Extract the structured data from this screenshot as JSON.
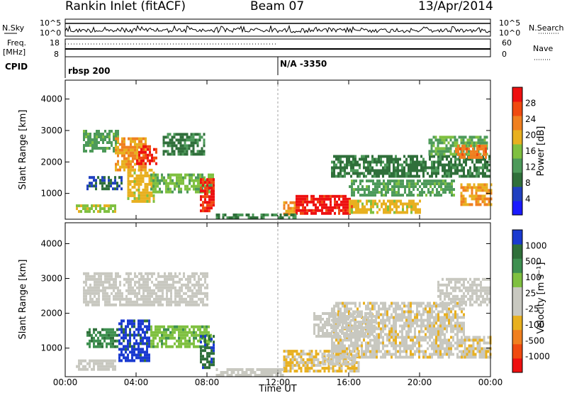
{
  "header": {
    "station": "Rankin Inlet (fitACF)",
    "beam": "Beam 07",
    "date": "13/Apr/2014"
  },
  "top_panels": {
    "nsky_label": "N.Sky",
    "nsearch_label": "N.Search",
    "freq_label": "Freq.",
    "freq_unit": "[MHz]",
    "nave_label": "Nave",
    "cpid_label": "CPID",
    "left_ticks_noise": [
      "10^5",
      "10^0"
    ],
    "right_ticks_noise": [
      "10^5",
      "10^0"
    ],
    "left_ticks_freq": [
      "18",
      "8"
    ],
    "right_ticks_nave": [
      "60",
      "0"
    ],
    "cpid_segments": [
      {
        "start_hour": 0,
        "label": "rbsp 200"
      },
      {
        "start_hour": 12,
        "label": "N/A -3350"
      }
    ]
  },
  "colors": {
    "power_scale": [
      "#1a1aff",
      "#2040c0",
      "#2f6f3a",
      "#4d9a5a",
      "#7fc040",
      "#e8b020",
      "#f08020",
      "#f04a10",
      "#ee1010"
    ],
    "velocity_scale": [
      "#ee1010",
      "#f04a10",
      "#f08020",
      "#e8b020",
      "#c8c8c0",
      "#c8c8c0",
      "#7fc040",
      "#3e9050",
      "#2f6f3a",
      "#1a3ad0"
    ]
  },
  "chart_data": [
    {
      "type": "heatmap",
      "title": "",
      "xlabel": "",
      "ylabel": "Slant Range [km]",
      "xlim": [
        0,
        24
      ],
      "ylim": [
        180,
        4600
      ],
      "yticks": [
        "1000",
        "2000",
        "3000",
        "4000"
      ],
      "colorbar_label": "Power [dB]",
      "colorbar_ticks": [
        "4",
        "8",
        "12",
        "16",
        "20",
        "24",
        "28"
      ],
      "colorbar_range": [
        0,
        30
      ],
      "regions": [
        {
          "x0": 1.0,
          "x1": 3.0,
          "y0": 2300,
          "y1": 3000,
          "value": 12
        },
        {
          "x0": 2.8,
          "x1": 4.6,
          "y0": 1700,
          "y1": 2700,
          "value": 20
        },
        {
          "x0": 4.0,
          "x1": 5.2,
          "y0": 1900,
          "y1": 2500,
          "value": 27
        },
        {
          "x0": 5.5,
          "x1": 7.9,
          "y0": 2200,
          "y1": 2900,
          "value": 9
        },
        {
          "x0": 1.2,
          "x1": 3.2,
          "y0": 1100,
          "y1": 1500,
          "value": 7
        },
        {
          "x0": 3.5,
          "x1": 5.0,
          "y0": 700,
          "y1": 1700,
          "value": 18
        },
        {
          "x0": 4.8,
          "x1": 8.3,
          "y0": 1000,
          "y1": 1600,
          "value": 14
        },
        {
          "x0": 7.6,
          "x1": 8.4,
          "y0": 400,
          "y1": 1400,
          "value": 27
        },
        {
          "x0": 0.6,
          "x1": 2.8,
          "y0": 380,
          "y1": 600,
          "value": 16
        },
        {
          "x0": 12.3,
          "x1": 13.0,
          "y0": 300,
          "y1": 700,
          "value": 20
        },
        {
          "x0": 13.0,
          "x1": 16.2,
          "y0": 320,
          "y1": 900,
          "value": 28
        },
        {
          "x0": 16.0,
          "x1": 20.0,
          "y0": 350,
          "y1": 800,
          "value": 18
        },
        {
          "x0": 15.0,
          "x1": 24.0,
          "y0": 1500,
          "y1": 2200,
          "value": 9
        },
        {
          "x0": 16.0,
          "x1": 22.0,
          "y0": 900,
          "y1": 1400,
          "value": 12
        },
        {
          "x0": 20.5,
          "x1": 23.8,
          "y0": 2200,
          "y1": 2800,
          "value": 13
        },
        {
          "x0": 22.0,
          "x1": 23.8,
          "y0": 2100,
          "y1": 2500,
          "value": 22
        },
        {
          "x0": 22.3,
          "x1": 24.0,
          "y0": 600,
          "y1": 1300,
          "value": 20
        },
        {
          "x0": 8.5,
          "x1": 13.0,
          "y0": 180,
          "y1": 350,
          "value": 10
        }
      ]
    },
    {
      "type": "heatmap",
      "title": "",
      "xlabel": "Time UT",
      "ylabel": "Slant Range [km]",
      "xlim": [
        0,
        24
      ],
      "ylim": [
        180,
        4600
      ],
      "yticks": [
        "1000",
        "2000",
        "3000",
        "4000"
      ],
      "xticks": [
        "00:00",
        "04:00",
        "08:00",
        "12:00",
        "16:00",
        "20:00",
        "00:00"
      ],
      "colorbar_label": "Velocity [m s⁻¹]",
      "colorbar_ticks": [
        "-1000",
        "-500",
        "-100",
        "-25",
        "25",
        "100",
        "500",
        "1000"
      ],
      "colorbar_range": [
        -1250,
        1250
      ],
      "regions": [
        {
          "x0": 1.0,
          "x1": 8.0,
          "y0": 2200,
          "y1": 3100,
          "value": 0
        },
        {
          "x0": 1.2,
          "x1": 3.0,
          "y0": 1000,
          "y1": 1500,
          "value": 700
        },
        {
          "x0": 3.0,
          "x1": 4.8,
          "y0": 600,
          "y1": 1800,
          "value": 1100
        },
        {
          "x0": 4.8,
          "x1": 8.2,
          "y0": 1000,
          "y1": 1600,
          "value": 400
        },
        {
          "x0": 7.6,
          "x1": 8.4,
          "y0": 400,
          "y1": 1300,
          "value": 900
        },
        {
          "x0": 0.6,
          "x1": 2.8,
          "y0": 350,
          "y1": 600,
          "value": 80
        },
        {
          "x0": 12.3,
          "x1": 16.5,
          "y0": 300,
          "y1": 900,
          "value": -300
        },
        {
          "x0": 14.5,
          "x1": 16.5,
          "y0": 500,
          "y1": 750,
          "value": 60
        },
        {
          "x0": 15.0,
          "x1": 22.5,
          "y0": 700,
          "y1": 2300,
          "value": -150
        },
        {
          "x0": 14.0,
          "x1": 17.5,
          "y0": 1300,
          "y1": 2000,
          "value": 0
        },
        {
          "x0": 21.0,
          "x1": 24.0,
          "y0": 2200,
          "y1": 3000,
          "value": 0
        },
        {
          "x0": 22.5,
          "x1": 24.0,
          "y0": 700,
          "y1": 1300,
          "value": -200
        },
        {
          "x0": 8.5,
          "x1": 12.3,
          "y0": 180,
          "y1": 350,
          "value": 60
        }
      ]
    }
  ]
}
